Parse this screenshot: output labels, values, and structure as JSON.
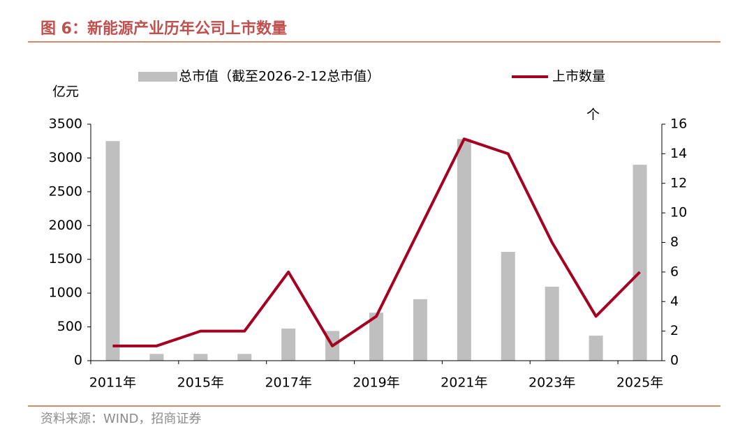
{
  "chart_data": {
    "type": "bar_line",
    "title": "图 6：新能源产业历年公司上市数量",
    "source": "资料来源：WIND，招商证券",
    "y_label": "亿元",
    "y2_label": "个",
    "categories": [
      "2011年",
      null,
      "2015年",
      null,
      "2017年",
      null,
      "2019年",
      null,
      "2021年",
      null,
      "2023年",
      null,
      "2025年"
    ],
    "series": [
      {
        "name": "总市值（截至2026-2-12总市值）",
        "type": "bar",
        "color": "#bfbfbf",
        "values": [
          3250,
          100,
          100,
          100,
          475,
          440,
          710,
          910,
          3280,
          1610,
          1095,
          370,
          2900
        ]
      },
      {
        "name": "上市数量",
        "type": "line",
        "axis": "y2",
        "color": "#a50021",
        "values": [
          1,
          1,
          2,
          2,
          6,
          1,
          3,
          9,
          15,
          14,
          8,
          3,
          6
        ]
      }
    ],
    "ylim": [
      0,
      3500
    ],
    "yticks": [
      0,
      500,
      1000,
      1500,
      2000,
      2500,
      3000,
      3500
    ],
    "y2lim": [
      0,
      16
    ],
    "y2ticks": [
      0,
      2,
      4,
      6,
      8,
      10,
      12,
      14,
      16
    ]
  }
}
